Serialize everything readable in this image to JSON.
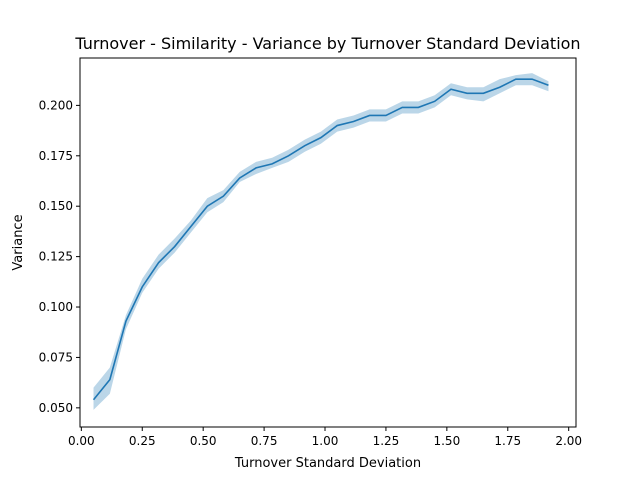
{
  "chart_data": {
    "type": "line",
    "title": "Turnover - Similarity - Variance by Turnover Standard Deviation",
    "xlabel": "Turnover Standard Deviation",
    "ylabel": "Variance",
    "xlim": [
      -0.0055,
      2.03
    ],
    "ylim": [
      0.0405,
      0.2235
    ],
    "xticks": [
      0.0,
      0.25,
      0.5,
      0.75,
      1.0,
      1.25,
      1.5,
      1.75,
      2.0
    ],
    "xtick_labels": [
      "0.00",
      "0.25",
      "0.50",
      "0.75",
      "1.00",
      "1.25",
      "1.50",
      "1.75",
      "2.00"
    ],
    "yticks": [
      0.05,
      0.075,
      0.1,
      0.125,
      0.15,
      0.175,
      0.2
    ],
    "ytick_labels": [
      "0.050",
      "0.075",
      "0.100",
      "0.125",
      "0.150",
      "0.175",
      "0.200"
    ],
    "grid": false,
    "colors": {
      "line": "#1f77b4",
      "band": "#1f77b4"
    },
    "series": [
      {
        "x": [
          0.05,
          0.117,
          0.183,
          0.25,
          0.317,
          0.383,
          0.45,
          0.517,
          0.583,
          0.65,
          0.717,
          0.783,
          0.85,
          0.917,
          0.983,
          1.05,
          1.117,
          1.183,
          1.25,
          1.317,
          1.383,
          1.45,
          1.517,
          1.583,
          1.65,
          1.717,
          1.783,
          1.85,
          1.917
        ],
        "y": [
          0.054,
          0.064,
          0.093,
          0.11,
          0.122,
          0.13,
          0.14,
          0.15,
          0.155,
          0.164,
          0.169,
          0.171,
          0.175,
          0.18,
          0.184,
          0.19,
          0.192,
          0.195,
          0.195,
          0.199,
          0.199,
          0.202,
          0.208,
          0.206,
          0.206,
          0.209,
          0.213,
          0.213,
          0.21
        ],
        "lower": [
          0.049,
          0.057,
          0.089,
          0.107,
          0.119,
          0.127,
          0.137,
          0.147,
          0.152,
          0.162,
          0.166,
          0.169,
          0.172,
          0.177,
          0.181,
          0.187,
          0.189,
          0.192,
          0.192,
          0.196,
          0.196,
          0.199,
          0.205,
          0.203,
          0.202,
          0.206,
          0.21,
          0.21,
          0.207
        ],
        "upper": [
          0.06,
          0.07,
          0.096,
          0.114,
          0.126,
          0.134,
          0.143,
          0.154,
          0.158,
          0.167,
          0.172,
          0.174,
          0.178,
          0.183,
          0.187,
          0.193,
          0.195,
          0.198,
          0.198,
          0.202,
          0.202,
          0.205,
          0.211,
          0.209,
          0.209,
          0.213,
          0.215,
          0.216,
          0.212
        ]
      }
    ]
  }
}
